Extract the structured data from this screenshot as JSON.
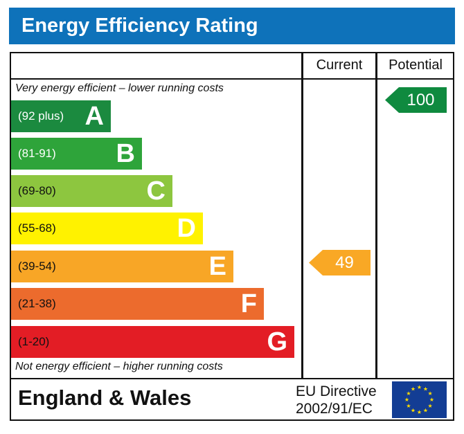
{
  "title": "Energy Efficiency Rating",
  "columns": {
    "current": "Current",
    "potential": "Potential"
  },
  "top_note": "Very energy efficient – lower running costs",
  "bottom_note": "Not energy efficient – higher running costs",
  "chart_data": {
    "type": "bar",
    "bands": [
      {
        "letter": "A",
        "range": "(92 plus)",
        "color": "#1b8a3f"
      },
      {
        "letter": "B",
        "range": "(81-91)",
        "color": "#2ea43a"
      },
      {
        "letter": "C",
        "range": "(69-80)",
        "color": "#8dc63f"
      },
      {
        "letter": "D",
        "range": "(55-68)",
        "color": "#fff200"
      },
      {
        "letter": "E",
        "range": "(39-54)",
        "color": "#f8a626"
      },
      {
        "letter": "F",
        "range": "(21-38)",
        "color": "#ec6b2d"
      },
      {
        "letter": "G",
        "range": "(1-20)",
        "color": "#e31d25"
      }
    ],
    "current": {
      "value": 49,
      "band": "E",
      "color": "#f9a825"
    },
    "potential": {
      "value": 100,
      "band": "A",
      "color": "#0f8a3f"
    }
  },
  "footer": {
    "region": "England & Wales",
    "directive_line1": "EU Directive",
    "directive_line2": "2002/91/EC",
    "flag_icon": "eu-flag-icon"
  }
}
